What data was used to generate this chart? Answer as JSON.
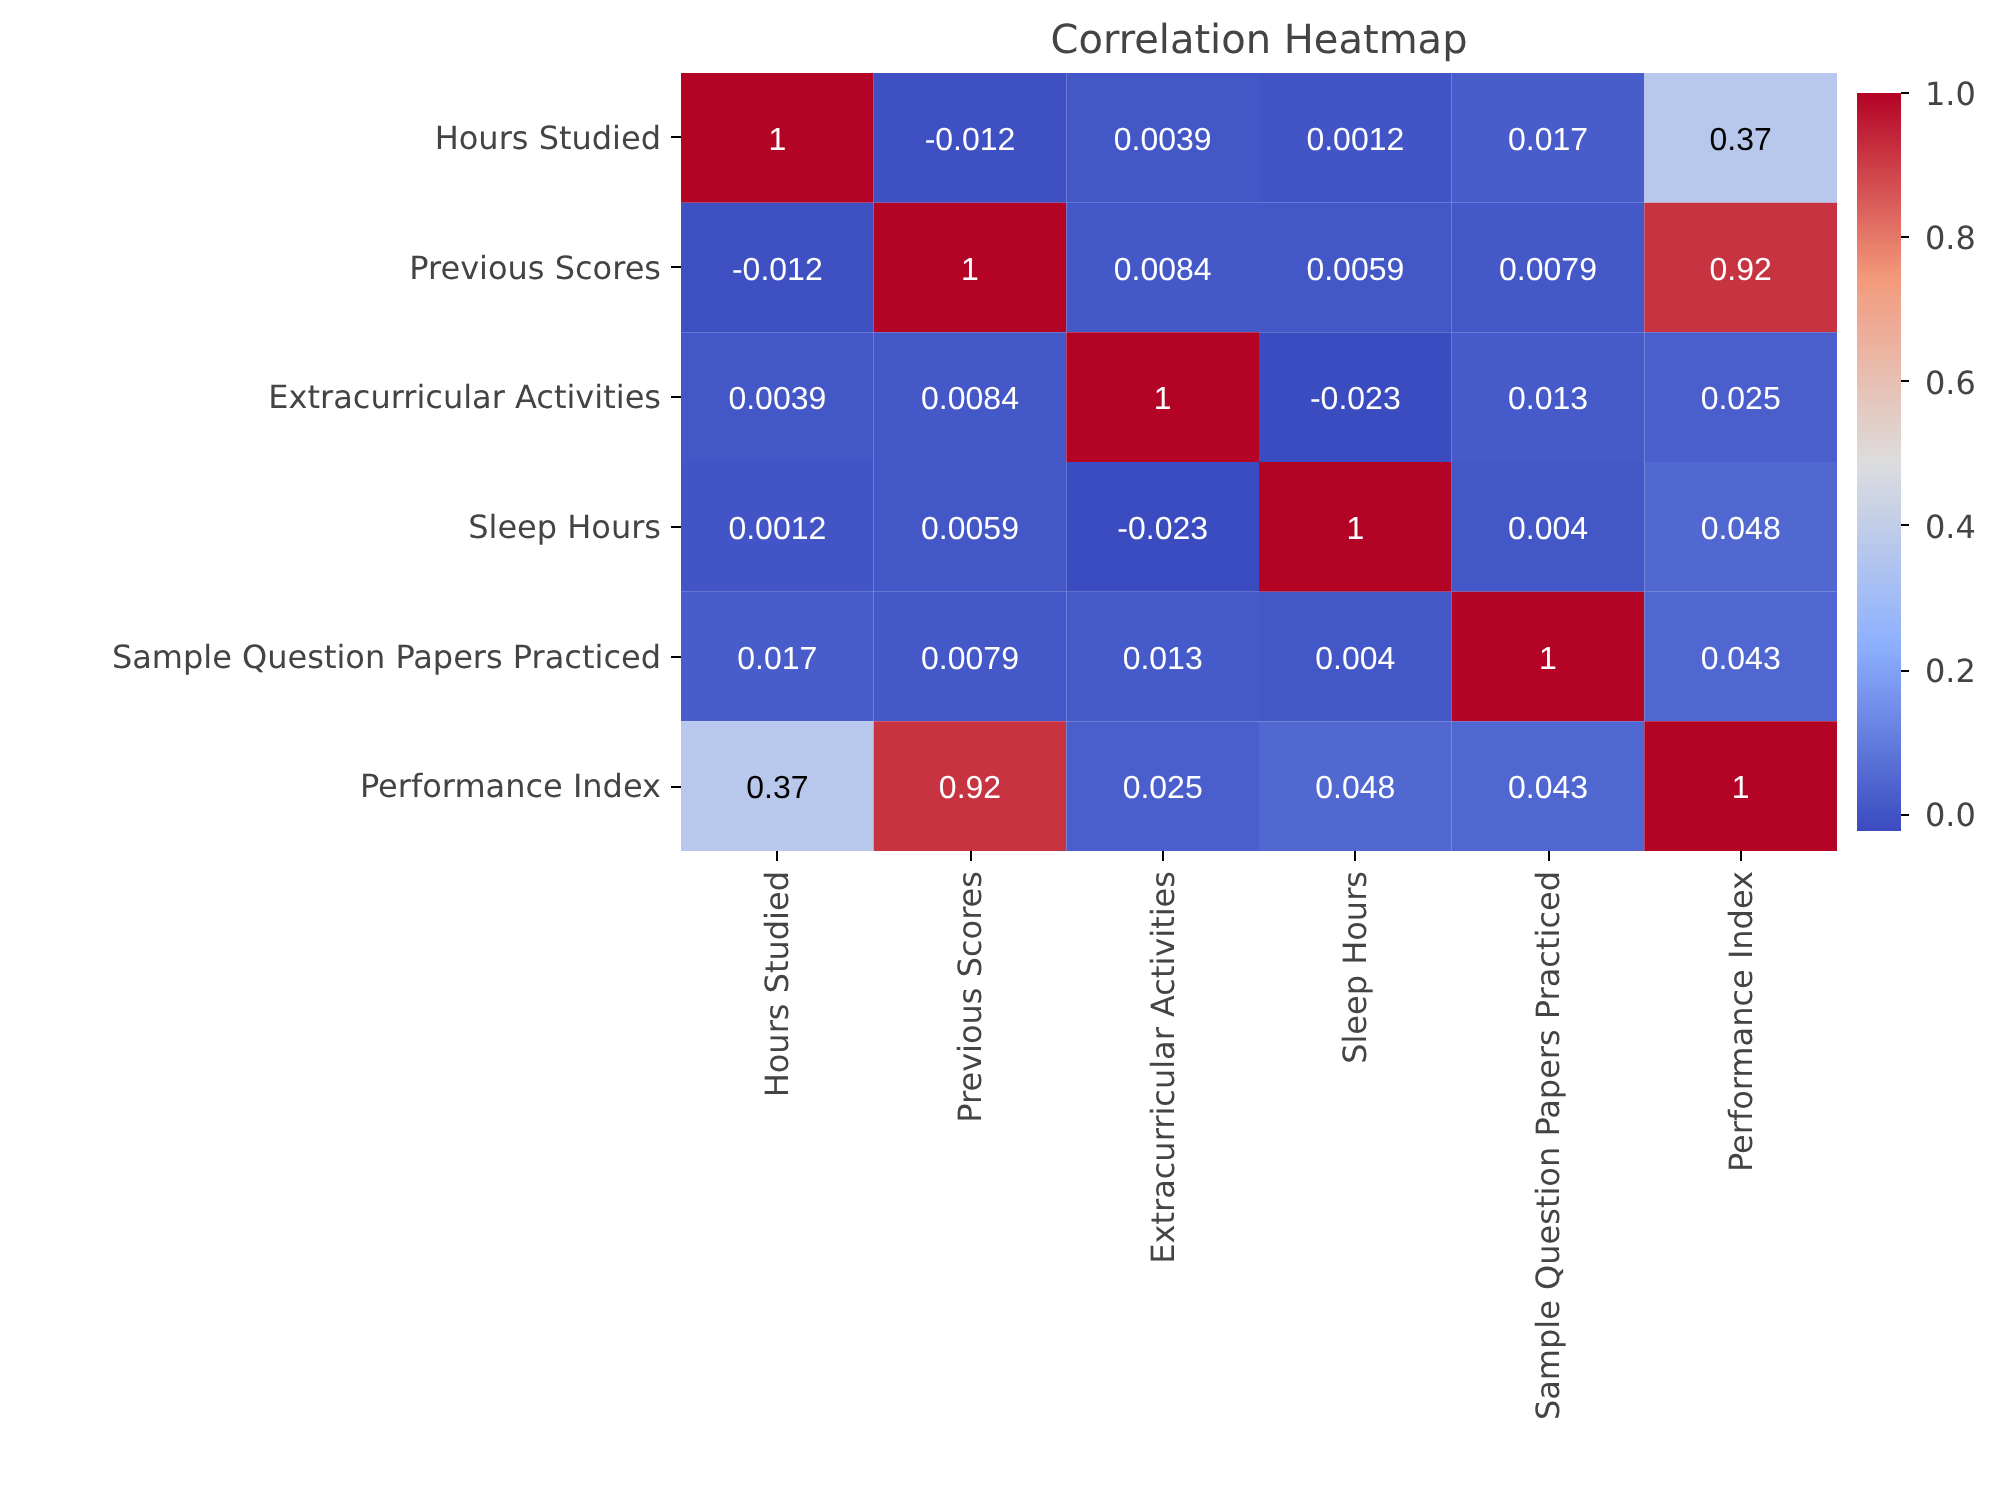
{
  "chart_data": {
    "type": "heatmap",
    "title": "Correlation Heatmap",
    "categories": [
      "Hours Studied",
      "Previous Scores",
      "Extracurricular Activities",
      "Sleep Hours",
      "Sample Question Papers Practiced",
      "Performance Index"
    ],
    "y_categories": [
      "Hours Studied",
      "Previous Scores",
      "Extracurricular Activities",
      "Sleep Hours",
      "Sample Question Papers Practiced",
      "Performance Index"
    ],
    "cells": [
      [
        1,
        -0.012,
        0.0039,
        0.0012,
        0.017,
        0.37
      ],
      [
        -0.012,
        1,
        0.0084,
        0.0059,
        0.0079,
        0.92
      ],
      [
        0.0039,
        0.0084,
        1,
        -0.023,
        0.013,
        0.025
      ],
      [
        0.0012,
        0.0059,
        -0.023,
        1,
        0.004,
        0.048
      ],
      [
        0.017,
        0.0079,
        0.013,
        0.004,
        1,
        0.043
      ],
      [
        0.37,
        0.92,
        0.025,
        0.048,
        0.043,
        1
      ]
    ],
    "clim": [
      -0.023,
      1
    ],
    "cticks": [
      {
        "value": 0,
        "label": "0.0"
      },
      {
        "value": 0.2,
        "label": "0.2"
      },
      {
        "value": 0.4,
        "label": "0.4"
      },
      {
        "value": 0.6,
        "label": "0.6"
      },
      {
        "value": 0.8,
        "label": "0.8"
      },
      {
        "value": 1,
        "label": "1.0"
      }
    ],
    "data_labels": true,
    "grid": false
  }
}
